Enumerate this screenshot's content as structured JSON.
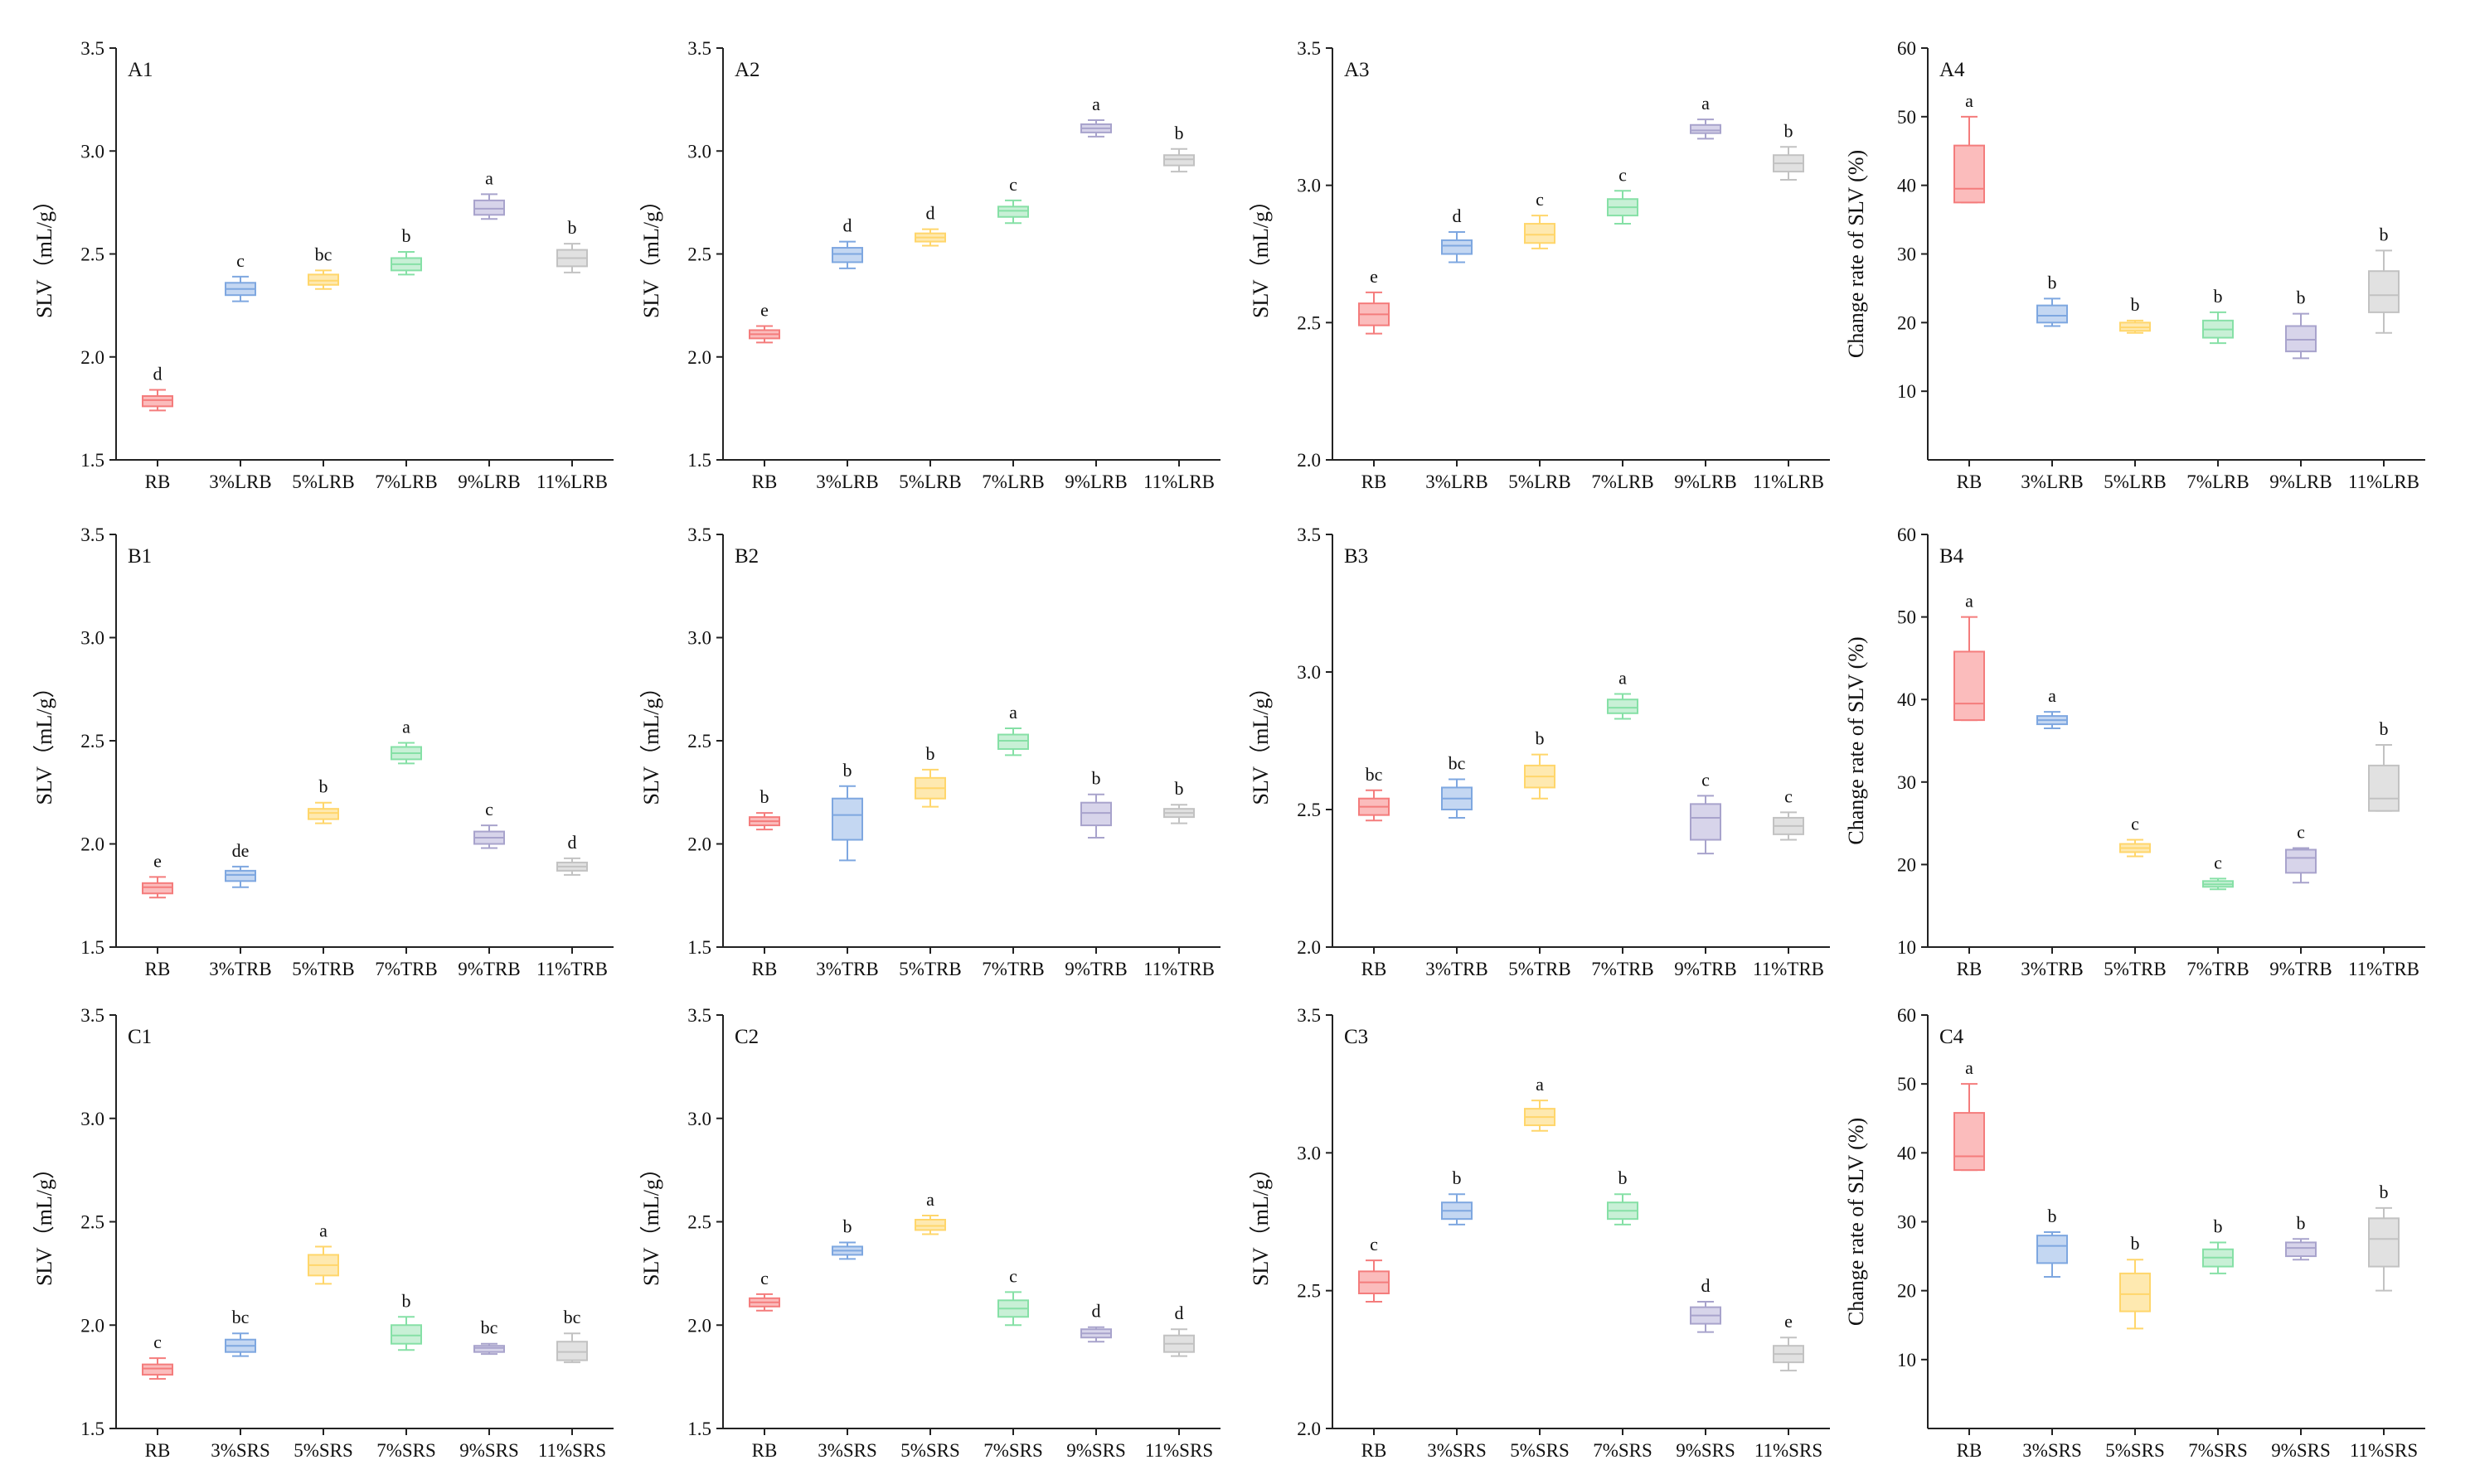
{
  "chart_data": [
    {
      "panel": "A1",
      "type": "box",
      "ylabel": "SLV（mL/g）",
      "ylim": [
        1.5,
        3.5
      ],
      "yticks": [
        "1.5",
        "2.0",
        "2.5",
        "3.0",
        "3.5"
      ],
      "categories": [
        "RB",
        "3%LRB",
        "5%LRB",
        "7%LRB",
        "9%LRB",
        "11%LRB"
      ],
      "boxes": [
        {
          "min": 1.74,
          "q1": 1.76,
          "median": 1.79,
          "q3": 1.81,
          "max": 1.84,
          "sig": "d"
        },
        {
          "min": 2.27,
          "q1": 2.3,
          "median": 2.33,
          "q3": 2.36,
          "max": 2.39,
          "sig": "c"
        },
        {
          "min": 2.33,
          "q1": 2.35,
          "median": 2.37,
          "q3": 2.4,
          "max": 2.42,
          "sig": "bc"
        },
        {
          "min": 2.4,
          "q1": 2.42,
          "median": 2.45,
          "q3": 2.48,
          "max": 2.51,
          "sig": "b"
        },
        {
          "min": 2.67,
          "q1": 2.69,
          "median": 2.72,
          "q3": 2.76,
          "max": 2.79,
          "sig": "a"
        },
        {
          "min": 2.41,
          "q1": 2.44,
          "median": 2.48,
          "q3": 2.52,
          "max": 2.55,
          "sig": "b"
        }
      ]
    },
    {
      "panel": "A2",
      "type": "box",
      "ylabel": "SLV（mL/g）",
      "ylim": [
        1.5,
        3.5
      ],
      "yticks": [
        "1.5",
        "2.0",
        "2.5",
        "3.0",
        "3.5"
      ],
      "categories": [
        "RB",
        "3%LRB",
        "5%LRB",
        "7%LRB",
        "9%LRB",
        "11%LRB"
      ],
      "boxes": [
        {
          "min": 2.07,
          "q1": 2.09,
          "median": 2.11,
          "q3": 2.13,
          "max": 2.15,
          "sig": "e"
        },
        {
          "min": 2.43,
          "q1": 2.46,
          "median": 2.5,
          "q3": 2.53,
          "max": 2.56,
          "sig": "d"
        },
        {
          "min": 2.54,
          "q1": 2.56,
          "median": 2.58,
          "q3": 2.6,
          "max": 2.62,
          "sig": "d"
        },
        {
          "min": 2.65,
          "q1": 2.68,
          "median": 2.71,
          "q3": 2.73,
          "max": 2.76,
          "sig": "c"
        },
        {
          "min": 3.07,
          "q1": 3.09,
          "median": 3.11,
          "q3": 3.13,
          "max": 3.15,
          "sig": "a"
        },
        {
          "min": 2.9,
          "q1": 2.93,
          "median": 2.96,
          "q3": 2.98,
          "max": 3.01,
          "sig": "b"
        }
      ]
    },
    {
      "panel": "A3",
      "type": "box",
      "ylabel": "SLV（mL/g）",
      "ylim": [
        2.0,
        3.5
      ],
      "yticks": [
        "2.0",
        "2.5",
        "3.0",
        "3.5"
      ],
      "categories": [
        "RB",
        "3%LRB",
        "5%LRB",
        "7%LRB",
        "9%LRB",
        "11%LRB"
      ],
      "boxes": [
        {
          "min": 2.46,
          "q1": 2.49,
          "median": 2.53,
          "q3": 2.57,
          "max": 2.61,
          "sig": "e"
        },
        {
          "min": 2.72,
          "q1": 2.75,
          "median": 2.78,
          "q3": 2.8,
          "max": 2.83,
          "sig": "d"
        },
        {
          "min": 2.77,
          "q1": 2.79,
          "median": 2.82,
          "q3": 2.86,
          "max": 2.89,
          "sig": "c"
        },
        {
          "min": 2.86,
          "q1": 2.89,
          "median": 2.92,
          "q3": 2.95,
          "max": 2.98,
          "sig": "c"
        },
        {
          "min": 3.17,
          "q1": 3.19,
          "median": 3.2,
          "q3": 3.22,
          "max": 3.24,
          "sig": "a"
        },
        {
          "min": 3.02,
          "q1": 3.05,
          "median": 3.08,
          "q3": 3.11,
          "max": 3.14,
          "sig": "b"
        }
      ]
    },
    {
      "panel": "A4",
      "type": "box",
      "ylabel": "Change rate of SLV (%)",
      "ylim": [
        0,
        60
      ],
      "yticks": [
        "10",
        "20",
        "30",
        "40",
        "50",
        "60"
      ],
      "categories": [
        "RB",
        "3%LRB",
        "5%LRB",
        "7%LRB",
        "9%LRB",
        "11%LRB"
      ],
      "boxes": [
        {
          "min": 37.5,
          "q1": 37.5,
          "median": 39.5,
          "q3": 45.8,
          "max": 50,
          "sig": "a"
        },
        {
          "min": 19.5,
          "q1": 20,
          "median": 21,
          "q3": 22.5,
          "max": 23.5,
          "sig": "b"
        },
        {
          "min": 18.5,
          "q1": 18.8,
          "median": 19.3,
          "q3": 20,
          "max": 20.3,
          "sig": "b"
        },
        {
          "min": 17,
          "q1": 17.8,
          "median": 19,
          "q3": 20.3,
          "max": 21.5,
          "sig": "b"
        },
        {
          "min": 14.8,
          "q1": 15.8,
          "median": 17.5,
          "q3": 19.5,
          "max": 21.3,
          "sig": "b"
        },
        {
          "min": 18.5,
          "q1": 21.5,
          "median": 24,
          "q3": 27.5,
          "max": 30.5,
          "sig": "b"
        }
      ]
    },
    {
      "panel": "B1",
      "type": "box",
      "ylabel": "SLV（mL/g）",
      "ylim": [
        1.5,
        3.5
      ],
      "yticks": [
        "1.5",
        "2.0",
        "2.5",
        "3.0",
        "3.5"
      ],
      "categories": [
        "RB",
        "3%TRB",
        "5%TRB",
        "7%TRB",
        "9%TRB",
        "11%TRB"
      ],
      "boxes": [
        {
          "min": 1.74,
          "q1": 1.76,
          "median": 1.79,
          "q3": 1.81,
          "max": 1.84,
          "sig": "e"
        },
        {
          "min": 1.79,
          "q1": 1.82,
          "median": 1.85,
          "q3": 1.87,
          "max": 1.89,
          "sig": "de"
        },
        {
          "min": 2.1,
          "q1": 2.12,
          "median": 2.15,
          "q3": 2.17,
          "max": 2.2,
          "sig": "b"
        },
        {
          "min": 2.39,
          "q1": 2.41,
          "median": 2.44,
          "q3": 2.47,
          "max": 2.49,
          "sig": "a"
        },
        {
          "min": 1.98,
          "q1": 2.0,
          "median": 2.03,
          "q3": 2.06,
          "max": 2.09,
          "sig": "c"
        },
        {
          "min": 1.85,
          "q1": 1.87,
          "median": 1.89,
          "q3": 1.91,
          "max": 1.93,
          "sig": "d"
        }
      ]
    },
    {
      "panel": "B2",
      "type": "box",
      "ylabel": "SLV（mL/g）",
      "ylim": [
        1.5,
        3.5
      ],
      "yticks": [
        "1.5",
        "2.0",
        "2.5",
        "3.0",
        "3.5"
      ],
      "categories": [
        "RB",
        "3%TRB",
        "5%TRB",
        "7%TRB",
        "9%TRB",
        "11%TRB"
      ],
      "boxes": [
        {
          "min": 2.07,
          "q1": 2.09,
          "median": 2.11,
          "q3": 2.13,
          "max": 2.15,
          "sig": "b"
        },
        {
          "min": 1.92,
          "q1": 2.02,
          "median": 2.14,
          "q3": 2.22,
          "max": 2.28,
          "sig": "b"
        },
        {
          "min": 2.18,
          "q1": 2.22,
          "median": 2.27,
          "q3": 2.32,
          "max": 2.36,
          "sig": "b"
        },
        {
          "min": 2.43,
          "q1": 2.46,
          "median": 2.5,
          "q3": 2.53,
          "max": 2.56,
          "sig": "a"
        },
        {
          "min": 2.03,
          "q1": 2.09,
          "median": 2.15,
          "q3": 2.2,
          "max": 2.24,
          "sig": "b"
        },
        {
          "min": 2.1,
          "q1": 2.13,
          "median": 2.15,
          "q3": 2.17,
          "max": 2.19,
          "sig": "b"
        }
      ]
    },
    {
      "panel": "B3",
      "type": "box",
      "ylabel": "SLV（mL/g）",
      "ylim": [
        2.0,
        3.5
      ],
      "yticks": [
        "2.0",
        "2.5",
        "3.0",
        "3.5"
      ],
      "categories": [
        "RB",
        "3%TRB",
        "5%TRB",
        "7%TRB",
        "9%TRB",
        "11%TRB"
      ],
      "boxes": [
        {
          "min": 2.46,
          "q1": 2.48,
          "median": 2.51,
          "q3": 2.54,
          "max": 2.57,
          "sig": "bc"
        },
        {
          "min": 2.47,
          "q1": 2.5,
          "median": 2.54,
          "q3": 2.58,
          "max": 2.61,
          "sig": "bc"
        },
        {
          "min": 2.54,
          "q1": 2.58,
          "median": 2.62,
          "q3": 2.66,
          "max": 2.7,
          "sig": "b"
        },
        {
          "min": 2.83,
          "q1": 2.85,
          "median": 2.87,
          "q3": 2.9,
          "max": 2.92,
          "sig": "a"
        },
        {
          "min": 2.34,
          "q1": 2.39,
          "median": 2.47,
          "q3": 2.52,
          "max": 2.55,
          "sig": "c"
        },
        {
          "min": 2.39,
          "q1": 2.41,
          "median": 2.44,
          "q3": 2.47,
          "max": 2.49,
          "sig": "c"
        }
      ]
    },
    {
      "panel": "B4",
      "type": "box",
      "ylabel": "Change rate of SLV (%)",
      "ylim": [
        10,
        60
      ],
      "yticks": [
        "10",
        "20",
        "30",
        "40",
        "50",
        "60"
      ],
      "categories": [
        "RB",
        "3%TRB",
        "5%TRB",
        "7%TRB",
        "9%TRB",
        "11%TRB"
      ],
      "boxes": [
        {
          "min": 37.5,
          "q1": 37.5,
          "median": 39.5,
          "q3": 45.8,
          "max": 50,
          "sig": "a"
        },
        {
          "min": 36.5,
          "q1": 37,
          "median": 37.5,
          "q3": 38,
          "max": 38.5,
          "sig": "a"
        },
        {
          "min": 21,
          "q1": 21.5,
          "median": 22,
          "q3": 22.5,
          "max": 23,
          "sig": "c"
        },
        {
          "min": 17,
          "q1": 17.3,
          "median": 17.6,
          "q3": 18,
          "max": 18.3,
          "sig": "c"
        },
        {
          "min": 17.8,
          "q1": 19,
          "median": 20.8,
          "q3": 21.8,
          "max": 22,
          "sig": "c"
        },
        {
          "min": 26.5,
          "q1": 26.5,
          "median": 28,
          "q3": 32,
          "max": 34.5,
          "sig": "b"
        }
      ]
    },
    {
      "panel": "C1",
      "type": "box",
      "ylabel": "SLV（mL/g）",
      "ylim": [
        1.5,
        3.5
      ],
      "yticks": [
        "1.5",
        "2.0",
        "2.5",
        "3.0",
        "3.5"
      ],
      "categories": [
        "RB",
        "3%SRS",
        "5%SRS",
        "7%SRS",
        "9%SRS",
        "11%SRS"
      ],
      "boxes": [
        {
          "min": 1.74,
          "q1": 1.76,
          "median": 1.79,
          "q3": 1.81,
          "max": 1.84,
          "sig": "c"
        },
        {
          "min": 1.85,
          "q1": 1.87,
          "median": 1.9,
          "q3": 1.93,
          "max": 1.96,
          "sig": "bc"
        },
        {
          "min": 2.2,
          "q1": 2.24,
          "median": 2.29,
          "q3": 2.34,
          "max": 2.38,
          "sig": "a"
        },
        {
          "min": 1.88,
          "q1": 1.91,
          "median": 1.95,
          "q3": 2.0,
          "max": 2.04,
          "sig": "b"
        },
        {
          "min": 1.86,
          "q1": 1.87,
          "median": 1.89,
          "q3": 1.9,
          "max": 1.91,
          "sig": "bc"
        },
        {
          "min": 1.82,
          "q1": 1.83,
          "median": 1.87,
          "q3": 1.92,
          "max": 1.96,
          "sig": "bc"
        }
      ]
    },
    {
      "panel": "C2",
      "type": "box",
      "ylabel": "SLV（mL/g）",
      "ylim": [
        1.5,
        3.5
      ],
      "yticks": [
        "1.5",
        "2.0",
        "2.5",
        "3.0",
        "3.5"
      ],
      "categories": [
        "RB",
        "3%SRS",
        "5%SRS",
        "7%SRS",
        "9%SRS",
        "11%SRS"
      ],
      "boxes": [
        {
          "min": 2.07,
          "q1": 2.09,
          "median": 2.11,
          "q3": 2.13,
          "max": 2.15,
          "sig": "c"
        },
        {
          "min": 2.32,
          "q1": 2.34,
          "median": 2.36,
          "q3": 2.38,
          "max": 2.4,
          "sig": "b"
        },
        {
          "min": 2.44,
          "q1": 2.46,
          "median": 2.48,
          "q3": 2.51,
          "max": 2.53,
          "sig": "a"
        },
        {
          "min": 2.0,
          "q1": 2.04,
          "median": 2.08,
          "q3": 2.12,
          "max": 2.16,
          "sig": "c"
        },
        {
          "min": 1.92,
          "q1": 1.94,
          "median": 1.96,
          "q3": 1.98,
          "max": 1.99,
          "sig": "d"
        },
        {
          "min": 1.85,
          "q1": 1.87,
          "median": 1.91,
          "q3": 1.95,
          "max": 1.98,
          "sig": "d"
        }
      ]
    },
    {
      "panel": "C3",
      "type": "box",
      "ylabel": "SLV（mL/g）",
      "ylim": [
        2.0,
        3.5
      ],
      "yticks": [
        "2.0",
        "2.5",
        "3.0",
        "3.5"
      ],
      "categories": [
        "RB",
        "3%SRS",
        "5%SRS",
        "7%SRS",
        "9%SRS",
        "11%SRS"
      ],
      "boxes": [
        {
          "min": 2.46,
          "q1": 2.49,
          "median": 2.53,
          "q3": 2.57,
          "max": 2.61,
          "sig": "c"
        },
        {
          "min": 2.74,
          "q1": 2.76,
          "median": 2.79,
          "q3": 2.82,
          "max": 2.85,
          "sig": "b"
        },
        {
          "min": 3.08,
          "q1": 3.1,
          "median": 3.13,
          "q3": 3.16,
          "max": 3.19,
          "sig": "a"
        },
        {
          "min": 2.74,
          "q1": 2.76,
          "median": 2.79,
          "q3": 2.82,
          "max": 2.85,
          "sig": "b"
        },
        {
          "min": 2.35,
          "q1": 2.38,
          "median": 2.41,
          "q3": 2.44,
          "max": 2.46,
          "sig": "d"
        },
        {
          "min": 2.21,
          "q1": 2.24,
          "median": 2.27,
          "q3": 2.3,
          "max": 2.33,
          "sig": "e"
        }
      ]
    },
    {
      "panel": "C4",
      "type": "box",
      "ylabel": "Change rate of SLV (%)",
      "ylim": [
        0,
        60
      ],
      "yticks": [
        "10",
        "20",
        "30",
        "40",
        "50",
        "60"
      ],
      "categories": [
        "RB",
        "3%SRS",
        "5%SRS",
        "7%SRS",
        "9%SRS",
        "11%SRS"
      ],
      "boxes": [
        {
          "min": 37.5,
          "q1": 37.5,
          "median": 39.5,
          "q3": 45.8,
          "max": 50,
          "sig": "a"
        },
        {
          "min": 22,
          "q1": 24,
          "median": 26.5,
          "q3": 28,
          "max": 28.5,
          "sig": "b"
        },
        {
          "min": 14.5,
          "q1": 17,
          "median": 19.5,
          "q3": 22.5,
          "max": 24.5,
          "sig": "b"
        },
        {
          "min": 22.5,
          "q1": 23.5,
          "median": 24.8,
          "q3": 26,
          "max": 27,
          "sig": "b"
        },
        {
          "min": 24.5,
          "q1": 25,
          "median": 26.2,
          "q3": 27,
          "max": 27.5,
          "sig": "b"
        },
        {
          "min": 20,
          "q1": 23.5,
          "median": 27.5,
          "q3": 30.5,
          "max": 32,
          "sig": "b"
        }
      ]
    }
  ],
  "colors": [
    "#f47c7c",
    "#7ea7e0",
    "#ffd66b",
    "#86e0a6",
    "#a8a3cc",
    "#c2c2c2"
  ],
  "fill_colors": [
    "#fbbcbc",
    "#c4d7f2",
    "#fee9b0",
    "#c8f0d6",
    "#d7d4ea",
    "#e1e1e1"
  ]
}
